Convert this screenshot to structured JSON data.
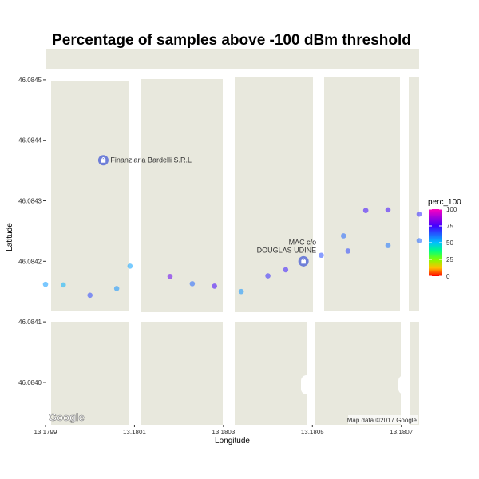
{
  "chart_data": {
    "type": "scatter",
    "title": "Percentage of samples above -100 dBm threshold",
    "xlabel": "Longitude",
    "ylabel": "Latitude",
    "xlim": [
      13.1799,
      13.18074
    ],
    "ylim": [
      46.08393,
      46.08455
    ],
    "x_ticks": [
      "13.1799",
      "13.1801",
      "13.1803",
      "13.1805",
      "13.1807"
    ],
    "x_tick_values": [
      13.1799,
      13.1801,
      13.1803,
      13.1805,
      13.1807
    ],
    "y_ticks": [
      "46.0840",
      "46.0841",
      "46.0842",
      "46.0843",
      "46.0844",
      "46.0845"
    ],
    "y_tick_values": [
      46.084,
      46.0841,
      46.0842,
      46.0843,
      46.0844,
      46.0845
    ],
    "grid": false,
    "legend": {
      "title": "perc_100",
      "position": "right",
      "ticks": [
        "100",
        "75",
        "50",
        "25",
        "0"
      ],
      "tick_values": [
        100,
        75,
        50,
        25,
        0
      ],
      "range": [
        0,
        100
      ]
    },
    "points": [
      {
        "x": 13.1799,
        "y": 46.084162,
        "value": 55
      },
      {
        "x": 13.17994,
        "y": 46.084161,
        "value": 52
      },
      {
        "x": 13.18,
        "y": 46.084144,
        "value": 66
      },
      {
        "x": 13.18006,
        "y": 46.084155,
        "value": 56
      },
      {
        "x": 13.18009,
        "y": 46.084192,
        "value": 54
      },
      {
        "x": 13.18018,
        "y": 46.084175,
        "value": 80
      },
      {
        "x": 13.18023,
        "y": 46.084163,
        "value": 62
      },
      {
        "x": 13.18028,
        "y": 46.084159,
        "value": 75
      },
      {
        "x": 13.18034,
        "y": 46.08415,
        "value": 56
      },
      {
        "x": 13.1804,
        "y": 46.084176,
        "value": 70
      },
      {
        "x": 13.18044,
        "y": 46.084186,
        "value": 72
      },
      {
        "x": 13.18052,
        "y": 46.08421,
        "value": 65
      },
      {
        "x": 13.18057,
        "y": 46.084242,
        "value": 62
      },
      {
        "x": 13.18058,
        "y": 46.084217,
        "value": 66
      },
      {
        "x": 13.18062,
        "y": 46.084284,
        "value": 74
      },
      {
        "x": 13.18067,
        "y": 46.084226,
        "value": 60
      },
      {
        "x": 13.18067,
        "y": 46.084285,
        "value": 74
      },
      {
        "x": 13.18074,
        "y": 46.084278,
        "value": 70
      },
      {
        "x": 13.18074,
        "y": 46.084234,
        "value": 62
      }
    ]
  },
  "map": {
    "land_color": "#e8e8dd",
    "road_color": "#ffffff",
    "marker_color": "#6f7fd8",
    "pois": [
      {
        "name": "Finanziaria Bardelli S.R.L",
        "lines": [
          "Finanziaria Bardelli S.R.L"
        ],
        "icon": "shopping-bag-icon",
        "lon": 13.18003,
        "lat": 46.084367
      },
      {
        "name": "MAC c/o DOUGLAS UDINE",
        "lines": [
          "MAC c/o",
          "DOUGLAS UDINE"
        ],
        "icon": "shopping-bag-icon",
        "lon": 13.18048,
        "lat": 46.0842
      }
    ],
    "attribution": "Map data ©2017 Google",
    "logo_text": "Google"
  }
}
